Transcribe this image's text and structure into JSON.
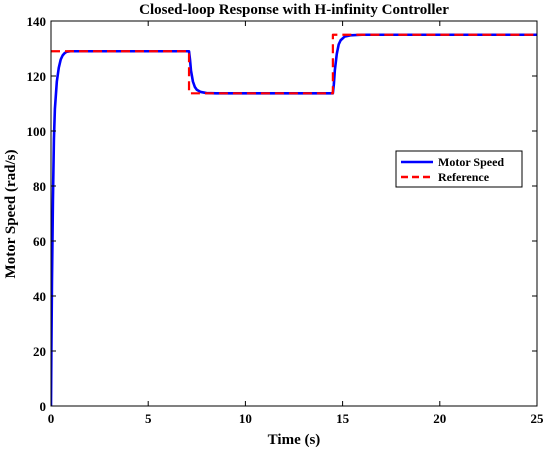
{
  "chart_data": {
    "type": "line",
    "title": "Closed-loop Response with H-infinity Controller",
    "xlabel": "Time (s)",
    "ylabel": "Motor Speed (rad/s)",
    "xlim": [
      0,
      25
    ],
    "ylim": [
      0,
      140
    ],
    "xticks": [
      0,
      5,
      10,
      15,
      20,
      25
    ],
    "yticks": [
      0,
      20,
      40,
      60,
      80,
      100,
      120,
      140
    ],
    "grid": false,
    "legend_position": "right-middle",
    "series": [
      {
        "name": "Motor Speed",
        "color": "#0000ff",
        "style": "solid",
        "x": [
          0,
          0.02,
          0.05,
          0.1,
          0.15,
          0.2,
          0.3,
          0.4,
          0.5,
          0.6,
          0.7,
          0.8,
          1.0,
          1.5,
          2.0,
          5.0,
          7.1,
          7.15,
          7.2,
          7.3,
          7.4,
          7.5,
          7.7,
          8.0,
          8.5,
          10.0,
          14.5,
          14.55,
          14.6,
          14.7,
          14.8,
          14.9,
          15.1,
          15.4,
          16.0,
          20.0,
          25.0
        ],
        "y": [
          0,
          20,
          45,
          75,
          97,
          108,
          118,
          123,
          126,
          127.5,
          128.3,
          128.8,
          129,
          129,
          129,
          129,
          129,
          126,
          122,
          118,
          116,
          115,
          114.2,
          113.8,
          113.7,
          113.7,
          113.7,
          117,
          122,
          128,
          131.5,
          133,
          134.3,
          134.8,
          135,
          135,
          135
        ]
      },
      {
        "name": "Reference",
        "color": "#ff0000",
        "style": "dashed",
        "x": [
          0,
          7.1,
          7.1,
          14.5,
          14.5,
          25
        ],
        "y": [
          129,
          129,
          113.7,
          113.7,
          135,
          135
        ]
      }
    ]
  }
}
